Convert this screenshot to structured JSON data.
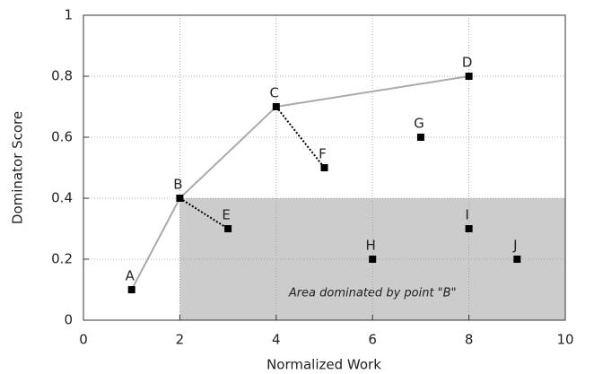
{
  "chart_data": {
    "type": "scatter",
    "xlabel": "Normalized Work",
    "ylabel": "Dominator Score",
    "x": [
      1,
      2,
      4,
      8,
      3,
      5,
      7,
      6,
      8,
      9
    ],
    "values": [
      0.1,
      0.4,
      0.7,
      0.8,
      0.3,
      0.5,
      0.6,
      0.2,
      0.3,
      0.2
    ],
    "point_labels": [
      "A",
      "B",
      "C",
      "D",
      "E",
      "F",
      "G",
      "H",
      "I",
      "J"
    ],
    "color": "#000000",
    "lines": [
      {
        "style": "solid",
        "color": "#aaaaaa",
        "x": [
          1,
          2,
          4,
          8
        ],
        "values": [
          0.1,
          0.4,
          0.7,
          0.8
        ]
      },
      {
        "style": "dotted",
        "color": "#000000",
        "x": [
          2,
          3
        ],
        "values": [
          0.4,
          0.3
        ]
      },
      {
        "style": "dotted",
        "color": "#000000",
        "x": [
          4,
          5
        ],
        "values": [
          0.7,
          0.5
        ]
      }
    ],
    "shaded_region": {
      "xlim": [
        2,
        10
      ],
      "ylim": [
        0,
        0.4
      ],
      "color": "#cccccc",
      "label": "Area dominated by point \"B\""
    },
    "xlim": [
      0,
      10
    ],
    "xticks": [
      0,
      2,
      4,
      6,
      8,
      10
    ],
    "ylim": [
      0,
      1
    ],
    "yticks": [
      0,
      0.2,
      0.4,
      0.6,
      0.8,
      1
    ],
    "grid": true
  }
}
